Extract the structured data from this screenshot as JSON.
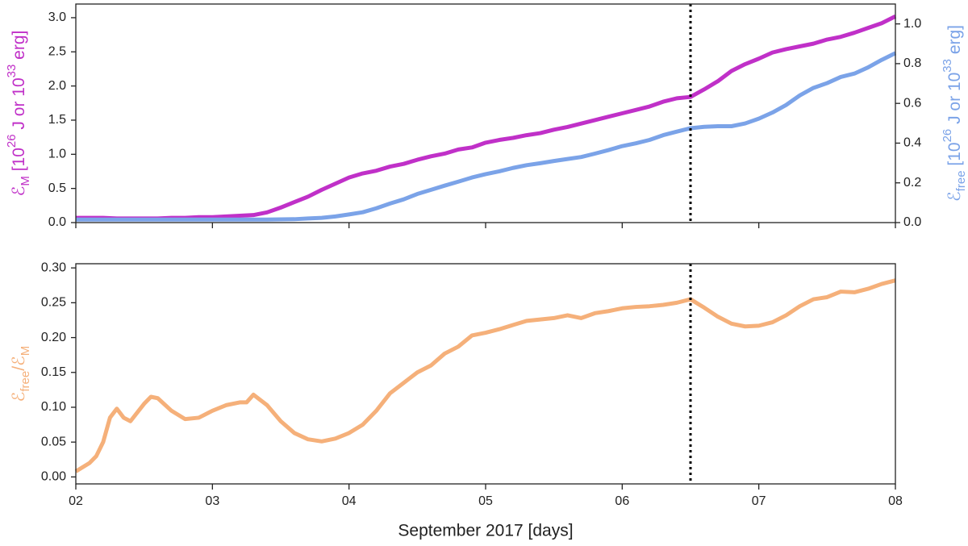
{
  "chart_data": [
    {
      "type": "line",
      "ylabel": [
        {
          "text": "ℰ",
          "color": "#c030c8"
        },
        {
          "text": "M",
          "sub": true,
          "color": "#c030c8"
        },
        {
          "text": " [10",
          "color": "#c030c8"
        },
        {
          "text": "26",
          "sup": true,
          "color": "#c030c8"
        },
        {
          "text": " J or 10",
          "color": "#c030c8"
        },
        {
          "text": "33",
          "sup": true,
          "color": "#c030c8"
        },
        {
          "text": " erg]",
          "color": "#c030c8"
        }
      ],
      "y2label": [
        {
          "text": "ℰ",
          "color": "#7ba3e8"
        },
        {
          "text": "free",
          "sub": true,
          "color": "#7ba3e8"
        },
        {
          "text": " [10",
          "color": "#7ba3e8"
        },
        {
          "text": "26",
          "sup": true,
          "color": "#7ba3e8"
        },
        {
          "text": " J or 10",
          "color": "#7ba3e8"
        },
        {
          "text": "33",
          "sup": true,
          "color": "#7ba3e8"
        },
        {
          "text": " erg]",
          "color": "#7ba3e8"
        }
      ],
      "xlim": [
        2,
        8
      ],
      "xticks": [
        2,
        3,
        4,
        5,
        6,
        7,
        8
      ],
      "xtick_labels": false,
      "ylim": [
        0,
        3.2
      ],
      "yticks": [
        {
          "value": 0,
          "label": "0.0"
        },
        0.5,
        {
          "value": 1,
          "label": "1.0"
        },
        1.5,
        {
          "value": 2,
          "label": "2.0"
        },
        2.5,
        {
          "value": 3,
          "label": "3.0"
        }
      ],
      "y2lim": [
        0,
        1.1
      ],
      "y2ticks": [
        {
          "value": 0,
          "label": "0.0"
        },
        0.2,
        0.4,
        0.6,
        0.8,
        {
          "value": 1,
          "label": "1.0"
        }
      ],
      "vline": 6.5,
      "series": [
        {
          "color": "#c030c8",
          "x": [
            2.0,
            2.1,
            2.2,
            2.3,
            2.4,
            2.5,
            2.6,
            2.7,
            2.8,
            2.9,
            3.0,
            3.1,
            3.2,
            3.3,
            3.4,
            3.5,
            3.6,
            3.7,
            3.8,
            3.9,
            4.0,
            4.1,
            4.2,
            4.3,
            4.4,
            4.5,
            4.6,
            4.7,
            4.8,
            4.9,
            5.0,
            5.1,
            5.2,
            5.3,
            5.4,
            5.5,
            5.6,
            5.7,
            5.8,
            5.9,
            6.0,
            6.1,
            6.2,
            6.3,
            6.4,
            6.5,
            6.6,
            6.7,
            6.8,
            6.9,
            7.0,
            7.1,
            7.2,
            7.3,
            7.4,
            7.5,
            7.6,
            7.7,
            7.8,
            7.9,
            8.0
          ],
          "values": [
            0.07,
            0.07,
            0.07,
            0.06,
            0.06,
            0.06,
            0.06,
            0.07,
            0.07,
            0.08,
            0.08,
            0.09,
            0.1,
            0.11,
            0.15,
            0.22,
            0.3,
            0.38,
            0.48,
            0.57,
            0.66,
            0.72,
            0.76,
            0.82,
            0.86,
            0.92,
            0.97,
            1.01,
            1.07,
            1.1,
            1.17,
            1.21,
            1.24,
            1.28,
            1.31,
            1.36,
            1.4,
            1.45,
            1.5,
            1.55,
            1.6,
            1.65,
            1.7,
            1.77,
            1.82,
            1.84,
            1.95,
            2.07,
            2.22,
            2.32,
            2.4,
            2.49,
            2.54,
            2.58,
            2.62,
            2.68,
            2.72,
            2.78,
            2.85,
            2.92,
            3.02
          ]
        },
        {
          "color": "#7ba3e8",
          "axis": "y2",
          "x": [
            2.0,
            2.1,
            2.2,
            2.3,
            2.4,
            2.5,
            2.6,
            2.7,
            2.8,
            2.9,
            3.0,
            3.1,
            3.2,
            3.3,
            3.4,
            3.5,
            3.6,
            3.7,
            3.8,
            3.9,
            4.0,
            4.1,
            4.2,
            4.3,
            4.4,
            4.5,
            4.6,
            4.7,
            4.8,
            4.9,
            5.0,
            5.1,
            5.2,
            5.3,
            5.4,
            5.5,
            5.6,
            5.7,
            5.8,
            5.9,
            6.0,
            6.1,
            6.2,
            6.3,
            6.4,
            6.5,
            6.6,
            6.7,
            6.8,
            6.9,
            7.0,
            7.1,
            7.2,
            7.3,
            7.4,
            7.5,
            7.6,
            7.7,
            7.8,
            7.9,
            8.0
          ],
          "values": [
            0.015,
            0.015,
            0.015,
            0.015,
            0.015,
            0.015,
            0.015,
            0.015,
            0.015,
            0.015,
            0.015,
            0.015,
            0.015,
            0.015,
            0.015,
            0.016,
            0.017,
            0.021,
            0.024,
            0.031,
            0.041,
            0.052,
            0.072,
            0.096,
            0.117,
            0.144,
            0.165,
            0.186,
            0.206,
            0.227,
            0.244,
            0.258,
            0.275,
            0.289,
            0.299,
            0.31,
            0.32,
            0.33,
            0.347,
            0.365,
            0.385,
            0.399,
            0.416,
            0.44,
            0.458,
            0.475,
            0.482,
            0.485,
            0.485,
            0.499,
            0.523,
            0.554,
            0.592,
            0.64,
            0.678,
            0.702,
            0.733,
            0.75,
            0.781,
            0.819,
            0.853
          ]
        }
      ]
    },
    {
      "type": "line",
      "ylabel": [
        {
          "text": "ℰ",
          "color": "#f5b07a"
        },
        {
          "text": "free",
          "sub": true,
          "color": "#f5b07a"
        },
        {
          "text": "/ℰ",
          "color": "#f5b07a"
        },
        {
          "text": "M",
          "sub": true,
          "color": "#f5b07a"
        }
      ],
      "xlabel": "September 2017 [days]",
      "xlim": [
        2,
        8
      ],
      "xticks": [
        {
          "value": 2,
          "label": "02"
        },
        {
          "value": 3,
          "label": "03"
        },
        {
          "value": 4,
          "label": "04"
        },
        {
          "value": 5,
          "label": "05"
        },
        {
          "value": 6,
          "label": "06"
        },
        {
          "value": 7,
          "label": "07"
        },
        {
          "value": 8,
          "label": "08"
        }
      ],
      "xtick_labels": true,
      "ylim": [
        -0.01,
        0.306
      ],
      "yticks": [
        {
          "value": 0,
          "label": "0.00"
        },
        0.05,
        {
          "value": 0.1,
          "label": "0.10"
        },
        0.15,
        {
          "value": 0.2,
          "label": "0.20"
        },
        0.25,
        {
          "value": 0.3,
          "label": "0.30"
        }
      ],
      "vline": 6.5,
      "series": [
        {
          "color": "#f5b07a",
          "x": [
            2.0,
            2.1,
            2.15,
            2.2,
            2.25,
            2.3,
            2.35,
            2.4,
            2.5,
            2.55,
            2.6,
            2.7,
            2.8,
            2.9,
            3.0,
            3.1,
            3.2,
            3.25,
            3.3,
            3.4,
            3.5,
            3.6,
            3.7,
            3.8,
            3.9,
            4.0,
            4.1,
            4.2,
            4.3,
            4.4,
            4.5,
            4.6,
            4.7,
            4.8,
            4.9,
            5.0,
            5.1,
            5.2,
            5.3,
            5.4,
            5.5,
            5.6,
            5.7,
            5.8,
            5.9,
            6.0,
            6.1,
            6.2,
            6.3,
            6.4,
            6.5,
            6.6,
            6.7,
            6.8,
            6.9,
            7.0,
            7.1,
            7.2,
            7.3,
            7.4,
            7.5,
            7.6,
            7.7,
            7.8,
            7.9,
            8.0
          ],
          "values": [
            0.008,
            0.02,
            0.03,
            0.05,
            0.085,
            0.098,
            0.085,
            0.08,
            0.105,
            0.115,
            0.113,
            0.095,
            0.083,
            0.085,
            0.095,
            0.103,
            0.107,
            0.107,
            0.118,
            0.103,
            0.08,
            0.063,
            0.054,
            0.051,
            0.055,
            0.063,
            0.075,
            0.095,
            0.12,
            0.135,
            0.15,
            0.16,
            0.177,
            0.187,
            0.203,
            0.207,
            0.212,
            0.218,
            0.224,
            0.226,
            0.228,
            0.232,
            0.228,
            0.235,
            0.238,
            0.242,
            0.244,
            0.245,
            0.247,
            0.25,
            0.255,
            0.243,
            0.23,
            0.22,
            0.216,
            0.217,
            0.222,
            0.232,
            0.245,
            0.255,
            0.258,
            0.266,
            0.265,
            0.27,
            0.277,
            0.282
          ]
        }
      ]
    }
  ]
}
